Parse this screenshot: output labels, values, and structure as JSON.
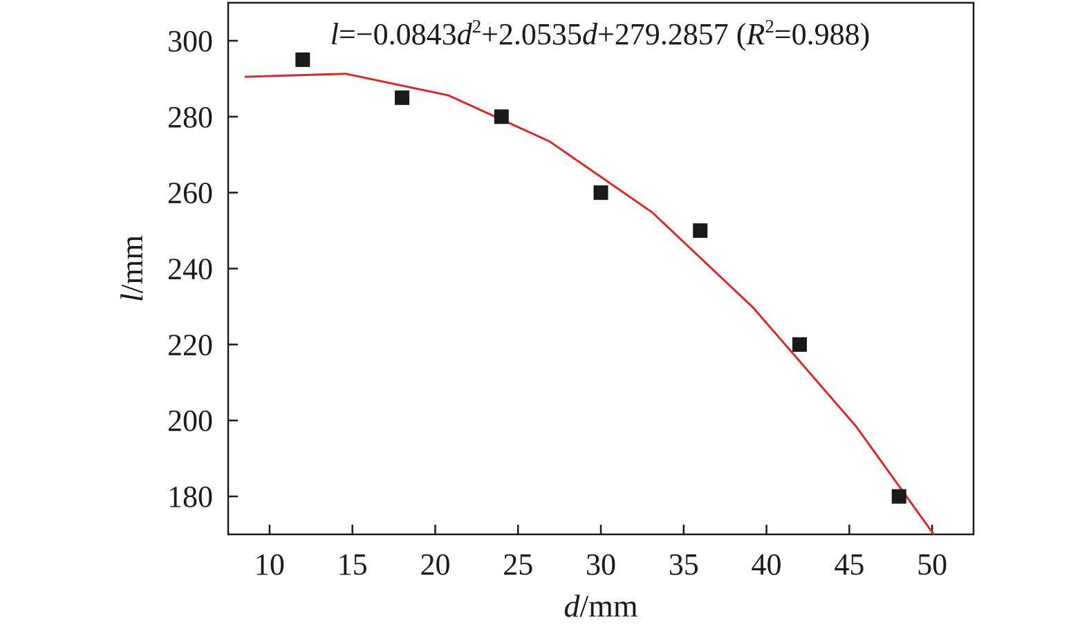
{
  "chart_data": {
    "type": "scatter",
    "title": "",
    "annotation": {
      "parts": [
        {
          "text": "l",
          "style": "italic"
        },
        {
          "text": "=−0.0843",
          "style": "normal"
        },
        {
          "text": "d",
          "style": "italic"
        },
        {
          "text": "2",
          "style": "sup"
        },
        {
          "text": "+2.0535",
          "style": "normal"
        },
        {
          "text": "d",
          "style": "italic"
        },
        {
          "text": "+279.2857 (",
          "style": "normal"
        },
        {
          "text": "R",
          "style": "italic"
        },
        {
          "text": "2",
          "style": "sup"
        },
        {
          "text": "=0.988)",
          "style": "normal"
        }
      ]
    },
    "xlabel": {
      "var": "d",
      "unit": "/mm"
    },
    "ylabel": {
      "var": "l",
      "unit": "/mm"
    },
    "xlim": [
      7.5,
      52.5
    ],
    "ylim": [
      170,
      310
    ],
    "xticks": [
      10,
      15,
      20,
      25,
      30,
      35,
      40,
      45,
      50
    ],
    "yticks": [
      180,
      200,
      220,
      240,
      260,
      280,
      300
    ],
    "grid": false,
    "series": [
      {
        "kind": "scatter",
        "marker": "square",
        "color": "#1a1a1a",
        "x": [
          12,
          18,
          24,
          30,
          36,
          42,
          48
        ],
        "y": [
          295,
          285,
          280,
          260,
          250,
          220,
          180
        ]
      },
      {
        "kind": "line",
        "color": "#d42a2a",
        "x": [
          8.5,
          14.6,
          20.8,
          26.9,
          33.1,
          39.2,
          45.4,
          50.1
        ],
        "y": [
          290.5,
          291.3,
          285.6,
          273.5,
          254.8,
          229.7,
          198.5,
          170.0
        ]
      }
    ]
  }
}
